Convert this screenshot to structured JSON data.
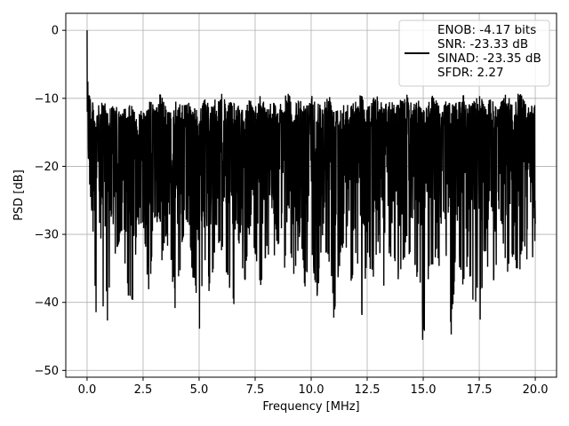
{
  "chart_data": {
    "type": "line",
    "title": "",
    "xlabel": "Frequency [MHz]",
    "ylabel": "PSD [dB]",
    "xlim": [
      -0.95,
      20.95
    ],
    "ylim": [
      -51,
      2.5
    ],
    "xticks": [
      0.0,
      2.5,
      5.0,
      7.5,
      10.0,
      12.5,
      15.0,
      17.5,
      20.0
    ],
    "xtick_labels": [
      "0.0",
      "2.5",
      "5.0",
      "7.5",
      "10.0",
      "12.5",
      "15.0",
      "17.5",
      "20.0"
    ],
    "yticks": [
      0,
      -10,
      -20,
      -30,
      -40,
      -50
    ],
    "ytick_labels": [
      "0",
      "−10",
      "−20",
      "−30",
      "−40",
      "−50"
    ],
    "grid": true,
    "legend": {
      "placement": "top-right",
      "line_color": "#000000",
      "entries": [
        "ENOB: -4.17 bits",
        "SNR: -23.33 dB",
        "SINAD: -23.35 dB",
        "SFDR: 2.27"
      ]
    },
    "series": [
      {
        "color": "#000000",
        "x": [
          0.0,
          0.05,
          0.1,
          0.15,
          0.2,
          0.3,
          0.4,
          0.5,
          0.6,
          0.75,
          1.0,
          1.25,
          1.5,
          1.75,
          2.0,
          2.25,
          2.5,
          2.75,
          3.0,
          3.25,
          3.5,
          3.75,
          4.0,
          4.25,
          4.5,
          4.75,
          5.0,
          5.25,
          5.5,
          5.75,
          6.0,
          6.25,
          6.5,
          6.75,
          7.0,
          7.25,
          7.5,
          7.75,
          8.0,
          8.25,
          8.5,
          8.75,
          9.0,
          9.25,
          9.5,
          9.75,
          10.0,
          10.25,
          10.5,
          10.75,
          11.0,
          11.25,
          11.5,
          11.75,
          12.0,
          12.25,
          12.5,
          12.75,
          13.0,
          13.25,
          13.5,
          13.75,
          14.0,
          14.25,
          14.5,
          14.75,
          15.0,
          15.25,
          15.5,
          15.75,
          16.0,
          16.25,
          16.5,
          16.75,
          17.0,
          17.25,
          17.5,
          17.75,
          18.0,
          18.25,
          18.5,
          18.75,
          19.0,
          19.25,
          19.5,
          19.75,
          20.0
        ],
        "upper": [
          0,
          -6,
          -8,
          -9,
          -10,
          -11,
          -12,
          -11,
          -11,
          -10,
          -11,
          -11,
          -12,
          -11,
          -11,
          -12,
          -11,
          -10,
          -11,
          -9,
          -11,
          -12,
          -10,
          -11,
          -10,
          -11,
          -12,
          -10,
          -11,
          -10,
          -9,
          -11,
          -10,
          -11,
          -12,
          -10,
          -11,
          -9,
          -11,
          -10,
          -11,
          -10,
          -9,
          -11,
          -10,
          -11,
          -9,
          -10,
          -11,
          -9,
          -10,
          -11,
          -10,
          -11,
          -10,
          -9,
          -11,
          -10,
          -9,
          -11,
          -10,
          -11,
          -10,
          -9,
          -11,
          -10,
          -11,
          -10,
          -9,
          -11,
          -10,
          -11,
          -10,
          -9,
          -11,
          -10,
          -9,
          -11,
          -10,
          -11,
          -10,
          -9,
          -11,
          -9,
          -10,
          -11,
          -11
        ],
        "lower": [
          -13,
          -20,
          -22,
          -24,
          -27,
          -34,
          -44,
          -36,
          -29,
          -46,
          -41,
          -34,
          -30,
          -38,
          -42,
          -29,
          -28,
          -39,
          -32,
          -37,
          -30,
          -35,
          -44,
          -31,
          -28,
          -38,
          -46,
          -36,
          -41,
          -30,
          -33,
          -36,
          -43,
          -31,
          -39,
          -30,
          -34,
          -42,
          -32,
          -35,
          -31,
          -36,
          -34,
          -37,
          -30,
          -39,
          -32,
          -41,
          -30,
          -36,
          -43,
          -35,
          -30,
          -38,
          -33,
          -45,
          -34,
          -37,
          -31,
          -40,
          -33,
          -36,
          -39,
          -31,
          -35,
          -37,
          -48,
          -38,
          -33,
          -36,
          -32,
          -46,
          -31,
          -39,
          -34,
          -41,
          -45,
          -32,
          -39,
          -36,
          -30,
          -38,
          -33,
          -37,
          -31,
          -40,
          -31
        ]
      }
    ]
  }
}
